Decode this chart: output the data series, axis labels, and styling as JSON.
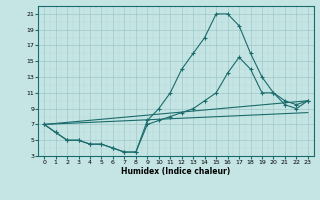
{
  "xlabel": "Humidex (Indice chaleur)",
  "xlim": [
    -0.5,
    23.5
  ],
  "ylim": [
    3,
    22
  ],
  "xticks": [
    0,
    1,
    2,
    3,
    4,
    5,
    6,
    7,
    8,
    9,
    10,
    11,
    12,
    13,
    14,
    15,
    16,
    17,
    18,
    19,
    20,
    21,
    22,
    23
  ],
  "yticks": [
    3,
    5,
    7,
    9,
    11,
    13,
    15,
    17,
    19,
    21
  ],
  "bg_color": "#c5e5e5",
  "grid_major_color": "#a0c8c8",
  "grid_minor_color": "#b8d8d8",
  "line_color": "#1a6b6b",
  "lines": [
    {
      "x": [
        0,
        1,
        2,
        3,
        4,
        5,
        6,
        7,
        8,
        9,
        10,
        11,
        12,
        13,
        14,
        15,
        16,
        17,
        18,
        19,
        20,
        21,
        22,
        23
      ],
      "y": [
        7,
        6,
        5,
        5,
        4.5,
        4.5,
        4,
        3.5,
        3.5,
        7.5,
        9,
        11,
        14,
        16,
        18,
        21,
        21,
        19.5,
        16,
        13,
        11,
        10,
        9.5,
        10
      ],
      "marker": true
    },
    {
      "x": [
        0,
        1,
        2,
        3,
        4,
        5,
        6,
        7,
        8,
        9,
        10,
        11,
        12,
        13,
        14,
        15,
        16,
        17,
        18,
        19,
        20,
        21,
        22,
        23
      ],
      "y": [
        7,
        6,
        5,
        5,
        4.5,
        4.5,
        4,
        3.5,
        3.5,
        7,
        7.5,
        8,
        8.5,
        9,
        10,
        11,
        13.5,
        15.5,
        14,
        11,
        11,
        9.5,
        9,
        10
      ],
      "marker": true
    },
    {
      "x": [
        0,
        23
      ],
      "y": [
        7,
        10
      ],
      "marker": false
    },
    {
      "x": [
        0,
        23
      ],
      "y": [
        7,
        8.5
      ],
      "marker": false
    }
  ]
}
